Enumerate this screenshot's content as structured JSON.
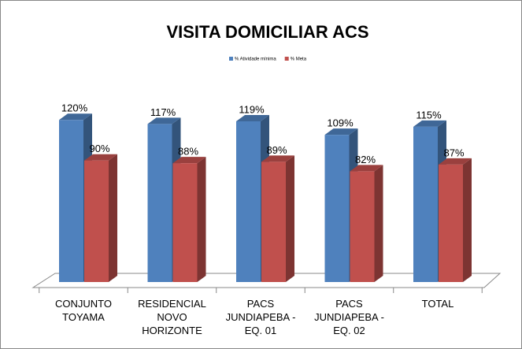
{
  "chart_data": {
    "type": "bar",
    "title": "VISITA DOMICILIAR ACS",
    "categories": [
      "CONJUNTO TOYAMA",
      "RESIDENCIAL NOVO HORIZONTE",
      "PACS JUNDIAPEBA - EQ. 01",
      "PACS JUNDIAPEBA - EQ. 02",
      "TOTAL"
    ],
    "series": [
      {
        "name": "% Atividade mínima",
        "color": "#4f81bd",
        "values": [
          120,
          117,
          119,
          109,
          115
        ],
        "value_labels": [
          "120%",
          "117%",
          "119%",
          "109%",
          "115%"
        ]
      },
      {
        "name": "% Meta",
        "color": "#c0504d",
        "values": [
          90,
          88,
          89,
          82,
          87
        ],
        "value_labels": [
          "90%",
          "88%",
          "89%",
          "82%",
          "87%"
        ]
      }
    ],
    "ylim": [
      0,
      140
    ],
    "legend": "top"
  }
}
